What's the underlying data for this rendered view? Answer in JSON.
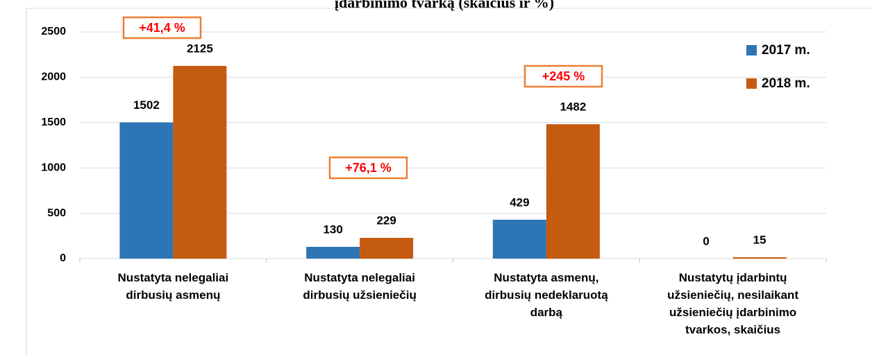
{
  "chart_data": {
    "type": "bar",
    "title": "įdarbinimo tvarką (skaičius ir %)",
    "categories": [
      "Nustatyta nelegaliai dirbusių asmenų",
      "Nustatyta nelegaliai dirbusių užsieniečių",
      "Nustatyta asmenų, dirbusių nedeklaruotą darbą",
      "Nustatytų įdarbintų užsieniečių, nesilaikant užsieniečių įdarbinimo tvarkos, skaičius"
    ],
    "series": [
      {
        "name": "2017 m.",
        "color": "#2e75b6",
        "values": [
          1502,
          130,
          429,
          0
        ]
      },
      {
        "name": "2018 m.",
        "color": "#c55a11",
        "values": [
          2125,
          229,
          1482,
          15
        ]
      }
    ],
    "annotations": [
      "+41,4 %",
      "+76,1 %",
      "+245 %"
    ],
    "ylim": [
      0,
      2500
    ],
    "yticks": [
      0,
      500,
      1000,
      1500,
      2000,
      2500
    ],
    "grid": true,
    "legend": "right"
  }
}
